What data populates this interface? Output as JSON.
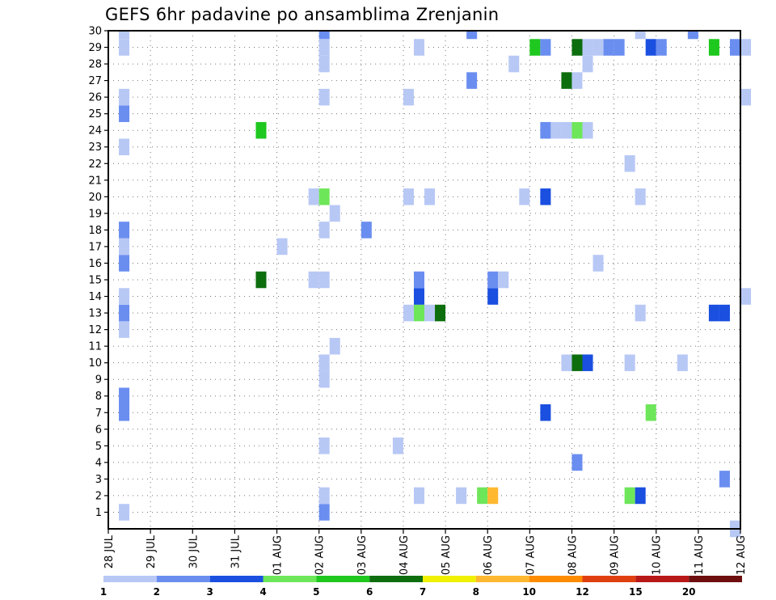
{
  "title": "GEFS 6hr padavine po ansamblima Zrenjanin",
  "chart_data": {
    "type": "heatmap",
    "title": "GEFS 6hr padavine po ansamblima Zrenjanin",
    "x_tick_labels": [
      "28 JUL",
      "29 JUL",
      "30 JUL",
      "31 JUL",
      "01 AUG",
      "02 AUG",
      "03 AUG",
      "04 AUG",
      "05 AUG",
      "06 AUG",
      "07 AUG",
      "08 AUG",
      "09 AUG",
      "10 AUG",
      "11 AUG",
      "12 AUG"
    ],
    "xlim_days": [
      0,
      15
    ],
    "y_tick_labels": [
      "1",
      "2",
      "3",
      "4",
      "5",
      "6",
      "7",
      "8",
      "9",
      "10",
      "11",
      "12",
      "13",
      "14",
      "15",
      "16",
      "17",
      "18",
      "19",
      "20",
      "21",
      "22",
      "23",
      "24",
      "25",
      "26",
      "27",
      "28",
      "29",
      "30"
    ],
    "ylim": [
      0,
      30
    ],
    "grid": true,
    "colorbar": {
      "labels": [
        "1",
        "2",
        "3",
        "4",
        "5",
        "6",
        "7",
        "8",
        "10",
        "12",
        "15",
        "20"
      ],
      "colors": [
        "#b8c8f5",
        "#6a8ef0",
        "#1a4fe0",
        "#6ee65a",
        "#1ec81e",
        "#0d6e0d",
        "#f0f000",
        "#ffb830",
        "#ff8c00",
        "#e04010",
        "#b81818",
        "#6e0e0e"
      ]
    },
    "cells": [
      [
        0.25,
        0,
        1
      ],
      [
        0.25,
        11,
        1
      ],
      [
        0.25,
        12,
        2
      ],
      [
        0.25,
        13,
        1
      ],
      [
        0.25,
        15,
        2
      ],
      [
        0.25,
        16,
        1
      ],
      [
        0.25,
        17,
        2
      ],
      [
        0.25,
        22,
        1
      ],
      [
        0.25,
        24,
        2
      ],
      [
        0.25,
        25,
        1
      ],
      [
        0.25,
        28,
        1
      ],
      [
        0.25,
        29,
        1
      ],
      [
        0.25,
        6,
        2
      ],
      [
        0.25,
        7,
        2
      ],
      [
        3.5,
        23,
        5
      ],
      [
        3.5,
        14,
        6
      ],
      [
        4.0,
        16,
        1
      ],
      [
        4.75,
        14,
        1
      ],
      [
        4.75,
        19,
        1
      ],
      [
        5.0,
        0,
        2
      ],
      [
        5.0,
        1,
        1
      ],
      [
        5.0,
        4,
        1
      ],
      [
        5.0,
        8,
        1
      ],
      [
        5.0,
        9,
        1
      ],
      [
        5.0,
        14,
        1
      ],
      [
        5.0,
        17,
        1
      ],
      [
        5.0,
        19,
        4
      ],
      [
        5.0,
        25,
        1
      ],
      [
        5.0,
        27,
        1
      ],
      [
        5.0,
        28,
        1
      ],
      [
        5.0,
        29,
        2
      ],
      [
        5.25,
        10,
        1
      ],
      [
        5.25,
        18,
        1
      ],
      [
        6.0,
        17,
        2
      ],
      [
        6.75,
        4,
        1
      ],
      [
        7.0,
        12,
        1
      ],
      [
        7.0,
        19,
        1
      ],
      [
        7.0,
        25,
        1
      ],
      [
        7.25,
        1,
        1
      ],
      [
        7.25,
        12,
        4
      ],
      [
        7.25,
        13,
        3
      ],
      [
        7.25,
        14,
        2
      ],
      [
        7.25,
        28,
        1
      ],
      [
        7.5,
        12,
        1
      ],
      [
        7.5,
        19,
        1
      ],
      [
        7.75,
        12,
        6
      ],
      [
        8.25,
        1,
        1
      ],
      [
        8.5,
        26,
        2
      ],
      [
        8.5,
        29,
        2
      ],
      [
        8.75,
        1,
        4
      ],
      [
        9.0,
        1,
        8
      ],
      [
        9.0,
        13,
        3
      ],
      [
        9.0,
        14,
        2
      ],
      [
        9.25,
        14,
        1
      ],
      [
        9.5,
        27,
        1
      ],
      [
        9.75,
        19,
        1
      ],
      [
        10.0,
        28,
        5
      ],
      [
        10.25,
        6,
        3
      ],
      [
        10.25,
        19,
        3
      ],
      [
        10.25,
        23,
        2
      ],
      [
        10.25,
        28,
        2
      ],
      [
        10.5,
        23,
        1
      ],
      [
        10.75,
        9,
        1
      ],
      [
        10.75,
        23,
        1
      ],
      [
        10.75,
        26,
        6
      ],
      [
        11.0,
        3,
        2
      ],
      [
        11.0,
        9,
        6
      ],
      [
        11.0,
        23,
        4
      ],
      [
        11.0,
        26,
        1
      ],
      [
        11.0,
        28,
        6
      ],
      [
        11.25,
        9,
        3
      ],
      [
        11.25,
        23,
        1
      ],
      [
        11.25,
        27,
        1
      ],
      [
        11.25,
        28,
        1
      ],
      [
        11.5,
        15,
        1
      ],
      [
        11.5,
        28,
        1
      ],
      [
        11.75,
        28,
        2
      ],
      [
        12.0,
        28,
        2
      ],
      [
        12.25,
        1,
        4
      ],
      [
        12.25,
        9,
        1
      ],
      [
        12.25,
        21,
        1
      ],
      [
        12.5,
        1,
        3
      ],
      [
        12.5,
        12,
        1
      ],
      [
        12.5,
        19,
        1
      ],
      [
        12.5,
        29,
        1
      ],
      [
        12.75,
        6,
        4
      ],
      [
        12.75,
        28,
        3
      ],
      [
        13.0,
        28,
        2
      ],
      [
        13.5,
        9,
        1
      ],
      [
        13.75,
        29,
        2
      ],
      [
        14.25,
        12,
        3
      ],
      [
        14.25,
        28,
        5
      ],
      [
        14.5,
        2,
        2
      ],
      [
        14.5,
        12,
        3
      ],
      [
        14.75,
        -1,
        1
      ],
      [
        14.75,
        28,
        2
      ],
      [
        15.0,
        13,
        1
      ],
      [
        15.0,
        25,
        1
      ],
      [
        15.0,
        28,
        1
      ]
    ]
  }
}
